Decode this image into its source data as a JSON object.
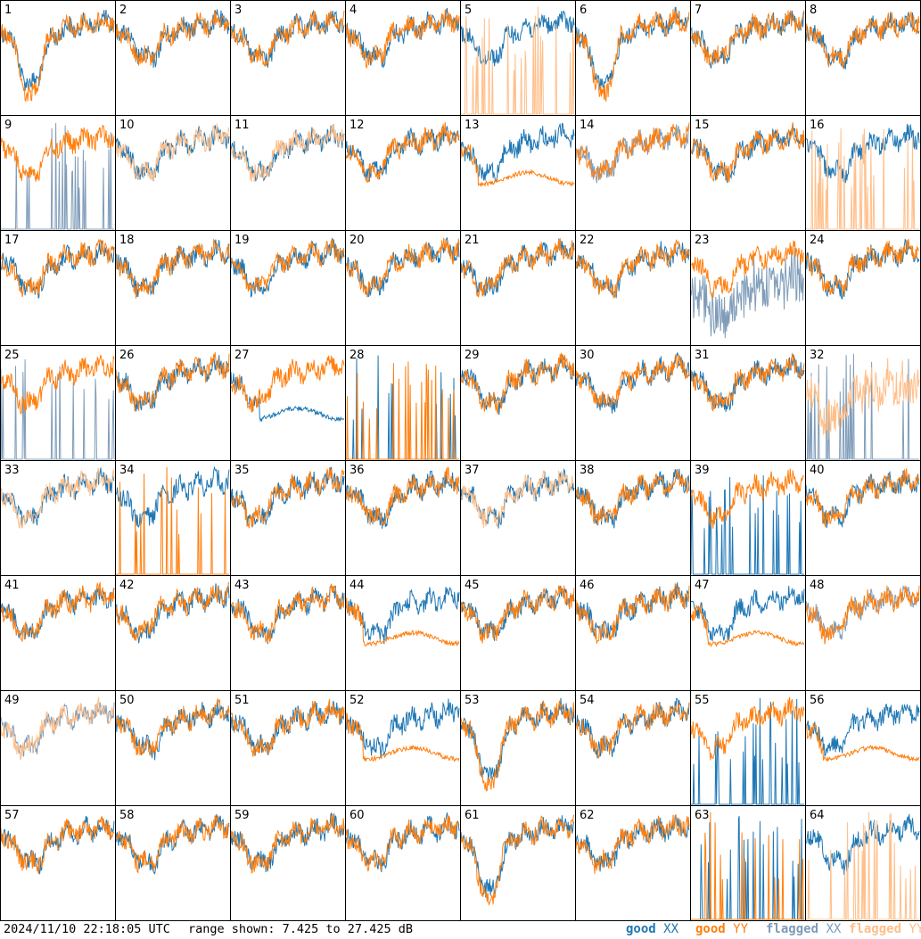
{
  "timestamp": "2024/11/10 22:18:05 UTC",
  "range_text": "range shown: 7.425 to 27.425 dB",
  "legend": [
    {
      "word": "good",
      "pol": "XX",
      "color": "#1f77b4"
    },
    {
      "word": "good",
      "pol": "YY",
      "color": "#ff7f0e"
    },
    {
      "word": "flagged",
      "pol": "XX",
      "color": "#7f9cb9"
    },
    {
      "word": "flagged",
      "pol": "YY",
      "color": "#ffbf8a"
    }
  ],
  "chart_data": {
    "type": "line",
    "grid": "8x8 small multiples",
    "ylim": [
      7.425,
      27.425
    ],
    "panels": [
      {
        "label": "1",
        "xx": "good",
        "yy": "good",
        "shape": "dip"
      },
      {
        "label": "2",
        "xx": "good",
        "yy": "good",
        "shape": "normal"
      },
      {
        "label": "3",
        "xx": "good",
        "yy": "good",
        "shape": "normal"
      },
      {
        "label": "4",
        "xx": "good",
        "yy": "good",
        "shape": "normal"
      },
      {
        "label": "5",
        "xx": "good",
        "yy": "flagged",
        "shape": "yy-spikes"
      },
      {
        "label": "6",
        "xx": "good",
        "yy": "good",
        "shape": "dip"
      },
      {
        "label": "7",
        "xx": "good",
        "yy": "good",
        "shape": "normal"
      },
      {
        "label": "8",
        "xx": "good",
        "yy": "good",
        "shape": "normal"
      },
      {
        "label": "9",
        "xx": "flagged",
        "yy": "good",
        "shape": "xx-spikes"
      },
      {
        "label": "10",
        "xx": "good",
        "yy": "flagged",
        "shape": "normal"
      },
      {
        "label": "11",
        "xx": "good",
        "yy": "flagged",
        "shape": "normal"
      },
      {
        "label": "12",
        "xx": "good",
        "yy": "good",
        "shape": "normal"
      },
      {
        "label": "13",
        "xx": "good",
        "yy": "good",
        "shape": "yy-sag"
      },
      {
        "label": "14",
        "xx": "flagged",
        "yy": "good",
        "shape": "normal"
      },
      {
        "label": "15",
        "xx": "good",
        "yy": "good",
        "shape": "normal"
      },
      {
        "label": "16",
        "xx": "good",
        "yy": "flagged",
        "shape": "yy-spikes"
      },
      {
        "label": "17",
        "xx": "good",
        "yy": "good",
        "shape": "normal"
      },
      {
        "label": "18",
        "xx": "good",
        "yy": "good",
        "shape": "normal"
      },
      {
        "label": "19",
        "xx": "good",
        "yy": "good",
        "shape": "normal"
      },
      {
        "label": "20",
        "xx": "good",
        "yy": "good",
        "shape": "normal"
      },
      {
        "label": "21",
        "xx": "good",
        "yy": "good",
        "shape": "normal"
      },
      {
        "label": "22",
        "xx": "good",
        "yy": "good",
        "shape": "normal"
      },
      {
        "label": "23",
        "xx": "flagged",
        "yy": "good",
        "shape": "xx-noisy"
      },
      {
        "label": "24",
        "xx": "good",
        "yy": "good",
        "shape": "normal"
      },
      {
        "label": "25",
        "xx": "flagged",
        "yy": "good",
        "shape": "xx-spikes"
      },
      {
        "label": "26",
        "xx": "good",
        "yy": "good",
        "shape": "normal"
      },
      {
        "label": "27",
        "xx": "good",
        "yy": "good",
        "shape": "xx-sag"
      },
      {
        "label": "28",
        "xx": "good",
        "yy": "good",
        "shape": "both-spikes"
      },
      {
        "label": "29",
        "xx": "good",
        "yy": "good",
        "shape": "normal"
      },
      {
        "label": "30",
        "xx": "good",
        "yy": "good",
        "shape": "normal"
      },
      {
        "label": "31",
        "xx": "good",
        "yy": "good",
        "shape": "normal"
      },
      {
        "label": "32",
        "xx": "flagged",
        "yy": "flagged",
        "shape": "noisy-flagged"
      },
      {
        "label": "33",
        "xx": "good",
        "yy": "flagged",
        "shape": "normal"
      },
      {
        "label": "34",
        "xx": "good",
        "yy": "good",
        "shape": "yy-spikes"
      },
      {
        "label": "35",
        "xx": "good",
        "yy": "good",
        "shape": "normal"
      },
      {
        "label": "36",
        "xx": "good",
        "yy": "good",
        "shape": "normal"
      },
      {
        "label": "37",
        "xx": "good",
        "yy": "flagged",
        "shape": "normal"
      },
      {
        "label": "38",
        "xx": "good",
        "yy": "good",
        "shape": "normal"
      },
      {
        "label": "39",
        "xx": "good",
        "yy": "good",
        "shape": "xx-spikes"
      },
      {
        "label": "40",
        "xx": "good",
        "yy": "good",
        "shape": "normal"
      },
      {
        "label": "41",
        "xx": "good",
        "yy": "good",
        "shape": "normal"
      },
      {
        "label": "42",
        "xx": "good",
        "yy": "good",
        "shape": "normal"
      },
      {
        "label": "43",
        "xx": "good",
        "yy": "good",
        "shape": "normal"
      },
      {
        "label": "44",
        "xx": "good",
        "yy": "good",
        "shape": "yy-sag"
      },
      {
        "label": "45",
        "xx": "good",
        "yy": "good",
        "shape": "normal"
      },
      {
        "label": "46",
        "xx": "good",
        "yy": "good",
        "shape": "normal"
      },
      {
        "label": "47",
        "xx": "good",
        "yy": "good",
        "shape": "yy-sag"
      },
      {
        "label": "48",
        "xx": "flagged",
        "yy": "good",
        "shape": "normal"
      },
      {
        "label": "49",
        "xx": "flagged",
        "yy": "flagged",
        "shape": "normal"
      },
      {
        "label": "50",
        "xx": "good",
        "yy": "good",
        "shape": "normal"
      },
      {
        "label": "51",
        "xx": "good",
        "yy": "good",
        "shape": "normal"
      },
      {
        "label": "52",
        "xx": "good",
        "yy": "good",
        "shape": "yy-sag"
      },
      {
        "label": "53",
        "xx": "good",
        "yy": "good",
        "shape": "dip"
      },
      {
        "label": "54",
        "xx": "good",
        "yy": "good",
        "shape": "normal"
      },
      {
        "label": "55",
        "xx": "good",
        "yy": "good",
        "shape": "xx-spikes"
      },
      {
        "label": "56",
        "xx": "good",
        "yy": "good",
        "shape": "yy-sag"
      },
      {
        "label": "57",
        "xx": "good",
        "yy": "good",
        "shape": "normal"
      },
      {
        "label": "58",
        "xx": "good",
        "yy": "good",
        "shape": "normal"
      },
      {
        "label": "59",
        "xx": "good",
        "yy": "good",
        "shape": "normal"
      },
      {
        "label": "60",
        "xx": "good",
        "yy": "good",
        "shape": "normal"
      },
      {
        "label": "61",
        "xx": "good",
        "yy": "good",
        "shape": "dip"
      },
      {
        "label": "62",
        "xx": "good",
        "yy": "good",
        "shape": "normal"
      },
      {
        "label": "63",
        "xx": "good",
        "yy": "good",
        "shape": "both-spikes"
      },
      {
        "label": "64",
        "xx": "good",
        "yy": "flagged",
        "shape": "yy-spikes"
      }
    ]
  }
}
